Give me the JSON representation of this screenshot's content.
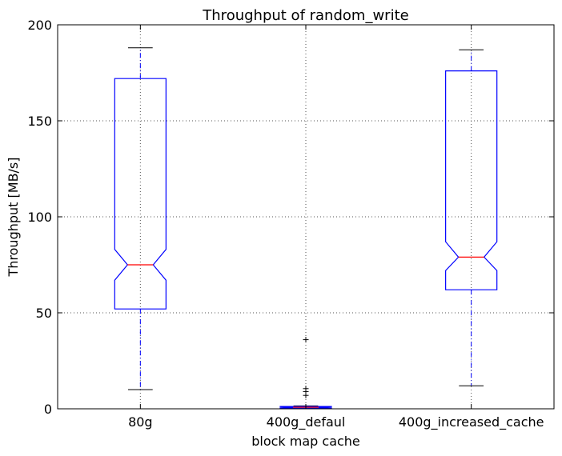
{
  "chart_data": {
    "type": "boxplot",
    "title": "Throughput of random_write",
    "xlabel": "block map cache",
    "ylabel": "Throughput [MB/s]",
    "ylim": [
      0,
      200
    ],
    "yticks": [
      0,
      50,
      100,
      150,
      200
    ],
    "grid": true,
    "notched": true,
    "categories": [
      "80g",
      "400g_defaul",
      "400g_increased_cache"
    ],
    "boxes": [
      {
        "whisker_low": 10,
        "q1": 52,
        "median": 75,
        "q3": 172,
        "whisker_high": 188,
        "notch_low": 67,
        "notch_high": 83,
        "fliers": []
      },
      {
        "whisker_low": 0,
        "q1": 0.3,
        "median": 0.8,
        "q3": 1.2,
        "whisker_high": 1.5,
        "notch_low": 0.5,
        "notch_high": 1.1,
        "fliers": [
          7,
          9,
          10.5,
          36
        ]
      },
      {
        "whisker_low": 12,
        "q1": 62,
        "median": 79,
        "q3": 176,
        "whisker_high": 187,
        "notch_low": 72,
        "notch_high": 87,
        "fliers": []
      }
    ],
    "colors": {
      "box": "#0000ff",
      "median": "#ff0000",
      "whisker_cap": "#000000",
      "grid": "#555555"
    }
  }
}
